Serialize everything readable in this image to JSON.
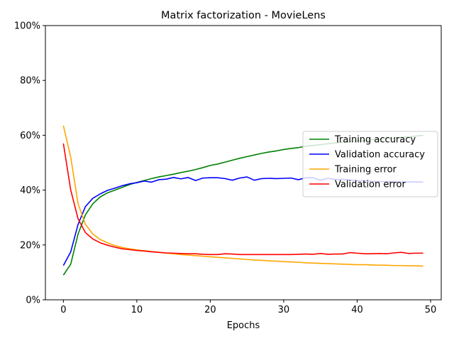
{
  "chart_data": {
    "type": "line",
    "title": "Matrix factorization - MovieLens",
    "xlabel": "Epochs",
    "ylabel": "",
    "xlim": [
      -2.45,
      51.45
    ],
    "ylim": [
      0,
      100
    ],
    "x_ticks": [
      0,
      10,
      20,
      30,
      40,
      50
    ],
    "y_ticks": [
      0,
      20,
      40,
      60,
      80,
      100
    ],
    "y_tick_format": "percent",
    "grid": false,
    "legend_position": "center-right",
    "x": [
      0,
      1,
      2,
      3,
      4,
      5,
      6,
      7,
      8,
      9,
      10,
      11,
      12,
      13,
      14,
      15,
      16,
      17,
      18,
      19,
      20,
      21,
      22,
      23,
      24,
      25,
      26,
      27,
      28,
      29,
      30,
      31,
      32,
      33,
      34,
      35,
      36,
      37,
      38,
      39,
      40,
      41,
      42,
      43,
      44,
      45,
      46,
      47,
      48,
      49
    ],
    "series": [
      {
        "name": "Training accuracy",
        "color": "#008000",
        "values": [
          9,
          13,
          24,
          31,
          35,
          37.5,
          39,
          40,
          41,
          42,
          42.8,
          43.5,
          44.2,
          44.8,
          45.3,
          45.8,
          46.4,
          46.9,
          47.5,
          48.2,
          49,
          49.5,
          50.2,
          50.9,
          51.6,
          52.2,
          52.8,
          53.4,
          53.9,
          54.3,
          54.8,
          55.2,
          55.5,
          56,
          56.3,
          56.6,
          56.9,
          57.2,
          57.5,
          57.7,
          57.9,
          58.1,
          58.4,
          58.6,
          58.8,
          59,
          59.2,
          59.4,
          59.7,
          60
        ]
      },
      {
        "name": "Validation accuracy",
        "color": "#0000ff",
        "values": [
          12.5,
          17.5,
          27.5,
          34,
          37,
          38.6,
          39.9,
          40.7,
          41.6,
          42.3,
          42.7,
          43.3,
          42.9,
          43.8,
          44,
          44.6,
          44.1,
          44.6,
          43.5,
          44.4,
          44.5,
          44.5,
          44.2,
          43.6,
          44.4,
          44.8,
          43.6,
          44.2,
          44.3,
          44.2,
          44.3,
          44.4,
          43.8,
          44.5,
          44.5,
          43.6,
          44.3,
          43.9,
          43.9,
          43.7,
          43.4,
          43.4,
          43.2,
          43.1,
          43.1,
          43,
          42.9,
          43,
          43,
          42.9
        ]
      },
      {
        "name": "Training error",
        "color": "#ffa500",
        "values": [
          63.5,
          52,
          35,
          27.5,
          24,
          22,
          20.8,
          19.8,
          19.1,
          18.6,
          18.2,
          17.9,
          17.6,
          17.3,
          17,
          16.8,
          16.5,
          16.3,
          16.1,
          15.9,
          15.7,
          15.5,
          15.3,
          15.1,
          14.9,
          14.7,
          14.5,
          14.4,
          14.2,
          14.1,
          13.9,
          13.8,
          13.7,
          13.5,
          13.4,
          13.3,
          13.2,
          13.1,
          13,
          12.9,
          12.8,
          12.8,
          12.7,
          12.6,
          12.6,
          12.5,
          12.5,
          12.4,
          12.4,
          12.3
        ]
      },
      {
        "name": "Validation error",
        "color": "#ff0000",
        "values": [
          57,
          40,
          29.5,
          24.5,
          22.2,
          20.8,
          19.9,
          19.2,
          18.6,
          18.3,
          18,
          17.8,
          17.5,
          17.3,
          17.1,
          17,
          16.9,
          16.8,
          16.8,
          16.6,
          16.5,
          16.5,
          16.8,
          16.7,
          16.5,
          16.5,
          16.5,
          16.5,
          16.5,
          16.5,
          16.5,
          16.5,
          16.6,
          16.7,
          16.6,
          16.9,
          16.6,
          16.7,
          16.7,
          17.2,
          17,
          16.8,
          16.8,
          16.9,
          16.8,
          17.1,
          17.3,
          16.9,
          17,
          17
        ]
      }
    ]
  }
}
